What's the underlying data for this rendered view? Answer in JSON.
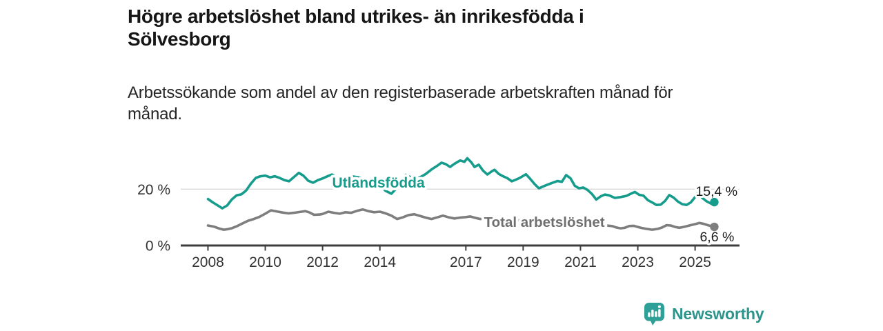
{
  "header": {
    "title_lines": [
      "Högre arbetslöshet bland utrikes- än inrikesfödda i",
      "Sölvesborg"
    ],
    "subtitle_lines": [
      "Arbetssökande som andel av den registerbaserade arbetskraften månad för",
      "månad."
    ]
  },
  "footer": {
    "brand": "Newsworthy",
    "logo_icon": "newsworthy-chart-bubble-icon"
  },
  "colors": {
    "accent_teal": "#169C8C",
    "series_gray": "#7E7E7E",
    "series_gray_label": "#6F6F6F",
    "axis": "#3D3D3D",
    "tick_text": "#333333",
    "grid": "#D9D9D9",
    "value_text": "#1A1A1A",
    "logo_teal": "#2D948B"
  },
  "chart_data": {
    "type": "line",
    "x_unit": "year (monthly resolution)",
    "y_unit": "percent of registered labour force",
    "xlim": [
      2007.05,
      2026.55
    ],
    "ylim": [
      0,
      36
    ],
    "grid_on": true,
    "grid_y": [
      20
    ],
    "yticks": [
      {
        "value": 20,
        "label": "20 %"
      },
      {
        "value": 0,
        "label": "0 %"
      }
    ],
    "xticks": [
      {
        "value": 2008,
        "label": "2008"
      },
      {
        "value": 2010,
        "label": "2010"
      },
      {
        "value": 2012,
        "label": "2012"
      },
      {
        "value": 2014,
        "label": "2014"
      },
      {
        "value": 2017,
        "label": "2017"
      },
      {
        "value": 2019,
        "label": "2019"
      },
      {
        "value": 2021,
        "label": "2021"
      },
      {
        "value": 2023,
        "label": "2023"
      },
      {
        "value": 2025,
        "label": "2025"
      }
    ],
    "legend_position": "inline-labels",
    "series": [
      {
        "name": "Utlandsfödda",
        "color": "#169C8C",
        "label_color": "#169C8C",
        "label_at": {
          "x": 2013.95,
          "y": 20.6
        },
        "end_label": "15,4 %",
        "end_value": 15.4,
        "points": [
          [
            2008.0,
            16.5
          ],
          [
            2008.17,
            15.3
          ],
          [
            2008.33,
            14.3
          ],
          [
            2008.5,
            13.2
          ],
          [
            2008.67,
            14.2
          ],
          [
            2008.83,
            16.3
          ],
          [
            2009.0,
            17.8
          ],
          [
            2009.17,
            18.2
          ],
          [
            2009.33,
            19.5
          ],
          [
            2009.5,
            22.0
          ],
          [
            2009.67,
            24.0
          ],
          [
            2009.83,
            24.6
          ],
          [
            2010.0,
            24.8
          ],
          [
            2010.17,
            24.2
          ],
          [
            2010.33,
            24.6
          ],
          [
            2010.5,
            24.0
          ],
          [
            2010.67,
            23.2
          ],
          [
            2010.83,
            22.8
          ],
          [
            2011.0,
            24.3
          ],
          [
            2011.17,
            25.8
          ],
          [
            2011.33,
            24.8
          ],
          [
            2011.5,
            23.0
          ],
          [
            2011.67,
            22.3
          ],
          [
            2011.83,
            23.2
          ],
          [
            2012.0,
            23.8
          ],
          [
            2012.17,
            24.6
          ],
          [
            2012.33,
            25.2
          ],
          [
            2012.5,
            24.2
          ],
          [
            2012.67,
            23.8
          ],
          [
            2012.83,
            24.2
          ],
          [
            2013.0,
            24.6
          ],
          [
            2013.25,
            24.2
          ],
          [
            2013.5,
            23.6
          ],
          [
            2013.75,
            22.6
          ],
          [
            2014.0,
            21.2
          ],
          [
            2014.2,
            19.4
          ],
          [
            2014.4,
            18.4
          ],
          [
            2014.6,
            20.5
          ],
          [
            2014.75,
            23.0
          ],
          [
            2014.9,
            25.1
          ],
          [
            2015.0,
            24.6
          ],
          [
            2015.2,
            23.8
          ],
          [
            2015.4,
            24.2
          ],
          [
            2015.6,
            25.4
          ],
          [
            2015.8,
            27.0
          ],
          [
            2016.0,
            28.3
          ],
          [
            2016.15,
            29.4
          ],
          [
            2016.3,
            28.9
          ],
          [
            2016.45,
            27.9
          ],
          [
            2016.6,
            29.0
          ],
          [
            2016.8,
            30.2
          ],
          [
            2016.95,
            29.7
          ],
          [
            2017.05,
            31.0
          ],
          [
            2017.2,
            29.4
          ],
          [
            2017.3,
            27.9
          ],
          [
            2017.45,
            28.7
          ],
          [
            2017.6,
            26.6
          ],
          [
            2017.75,
            25.2
          ],
          [
            2017.9,
            26.3
          ],
          [
            2018.0,
            26.9
          ],
          [
            2018.15,
            25.4
          ],
          [
            2018.3,
            24.6
          ],
          [
            2018.45,
            23.9
          ],
          [
            2018.6,
            22.8
          ],
          [
            2018.75,
            23.4
          ],
          [
            2018.9,
            24.1
          ],
          [
            2019.0,
            24.7
          ],
          [
            2019.1,
            25.3
          ],
          [
            2019.25,
            23.6
          ],
          [
            2019.4,
            21.8
          ],
          [
            2019.55,
            20.3
          ],
          [
            2019.7,
            21.0
          ],
          [
            2019.85,
            21.6
          ],
          [
            2020.0,
            22.2
          ],
          [
            2020.2,
            22.9
          ],
          [
            2020.35,
            22.6
          ],
          [
            2020.5,
            25.0
          ],
          [
            2020.65,
            23.9
          ],
          [
            2020.8,
            21.2
          ],
          [
            2020.95,
            20.3
          ],
          [
            2021.1,
            20.6
          ],
          [
            2021.25,
            19.7
          ],
          [
            2021.4,
            18.3
          ],
          [
            2021.55,
            16.3
          ],
          [
            2021.7,
            17.4
          ],
          [
            2021.85,
            18.1
          ],
          [
            2022.0,
            17.8
          ],
          [
            2022.2,
            16.9
          ],
          [
            2022.4,
            17.2
          ],
          [
            2022.6,
            17.6
          ],
          [
            2022.8,
            18.6
          ],
          [
            2022.9,
            19.0
          ],
          [
            2023.05,
            18.0
          ],
          [
            2023.2,
            17.7
          ],
          [
            2023.35,
            16.1
          ],
          [
            2023.5,
            15.3
          ],
          [
            2023.65,
            14.4
          ],
          [
            2023.8,
            14.5
          ],
          [
            2023.95,
            15.8
          ],
          [
            2024.1,
            17.9
          ],
          [
            2024.25,
            17.0
          ],
          [
            2024.4,
            15.6
          ],
          [
            2024.55,
            14.7
          ],
          [
            2024.7,
            14.4
          ],
          [
            2024.85,
            15.3
          ],
          [
            2025.0,
            17.2
          ],
          [
            2025.1,
            18.8
          ],
          [
            2025.25,
            16.9
          ],
          [
            2025.4,
            15.7
          ],
          [
            2025.55,
            14.9
          ],
          [
            2025.67,
            15.4
          ]
        ]
      },
      {
        "name": "Total arbetslöshet",
        "color": "#7E7E7E",
        "label_color": "#6F6F6F",
        "label_at": {
          "x": 2019.74,
          "y": 6.6
        },
        "end_label": "6,6 %",
        "end_value": 6.6,
        "points": [
          [
            2008.0,
            7.1
          ],
          [
            2008.2,
            6.7
          ],
          [
            2008.4,
            6.0
          ],
          [
            2008.55,
            5.6
          ],
          [
            2008.7,
            5.8
          ],
          [
            2008.85,
            6.2
          ],
          [
            2009.0,
            6.8
          ],
          [
            2009.2,
            7.8
          ],
          [
            2009.4,
            8.8
          ],
          [
            2009.6,
            9.4
          ],
          [
            2009.8,
            10.2
          ],
          [
            2010.0,
            11.3
          ],
          [
            2010.2,
            12.5
          ],
          [
            2010.4,
            12.1
          ],
          [
            2010.6,
            11.7
          ],
          [
            2010.8,
            11.4
          ],
          [
            2011.0,
            11.6
          ],
          [
            2011.2,
            11.9
          ],
          [
            2011.4,
            12.2
          ],
          [
            2011.55,
            11.7
          ],
          [
            2011.7,
            10.9
          ],
          [
            2011.9,
            11.0
          ],
          [
            2012.0,
            11.2
          ],
          [
            2012.2,
            12.0
          ],
          [
            2012.4,
            11.6
          ],
          [
            2012.6,
            11.3
          ],
          [
            2012.8,
            11.8
          ],
          [
            2013.0,
            11.6
          ],
          [
            2013.2,
            12.3
          ],
          [
            2013.4,
            12.8
          ],
          [
            2013.6,
            12.2
          ],
          [
            2013.8,
            11.8
          ],
          [
            2014.0,
            12.0
          ],
          [
            2014.2,
            11.4
          ],
          [
            2014.4,
            10.6
          ],
          [
            2014.6,
            9.4
          ],
          [
            2014.8,
            10.0
          ],
          [
            2015.0,
            10.8
          ],
          [
            2015.2,
            11.1
          ],
          [
            2015.4,
            10.5
          ],
          [
            2015.6,
            9.9
          ],
          [
            2015.8,
            9.4
          ],
          [
            2016.0,
            10.0
          ],
          [
            2016.2,
            10.6
          ],
          [
            2016.4,
            10.0
          ],
          [
            2016.6,
            9.6
          ],
          [
            2016.8,
            9.9
          ],
          [
            2017.0,
            10.1
          ],
          [
            2017.15,
            10.3
          ],
          [
            2017.3,
            9.9
          ],
          [
            2017.5,
            9.4
          ],
          [
            2017.7,
            9.6
          ],
          [
            2017.9,
            9.9
          ],
          [
            2018.1,
            9.6
          ],
          [
            2018.3,
            9.3
          ],
          [
            2018.5,
            9.0
          ],
          [
            2018.7,
            8.8
          ],
          [
            2018.9,
            9.0
          ],
          [
            2019.1,
            9.3
          ],
          [
            2019.3,
            9.0
          ],
          [
            2019.5,
            8.7
          ],
          [
            2019.7,
            8.5
          ],
          [
            2019.9,
            8.6
          ],
          [
            2020.1,
            8.8
          ],
          [
            2020.3,
            9.0
          ],
          [
            2020.5,
            9.2
          ],
          [
            2020.7,
            8.8
          ],
          [
            2020.9,
            8.4
          ],
          [
            2021.1,
            8.0
          ],
          [
            2021.3,
            7.7
          ],
          [
            2021.5,
            7.4
          ],
          [
            2021.7,
            7.2
          ],
          [
            2021.9,
            7.1
          ],
          [
            2022.1,
            6.9
          ],
          [
            2022.25,
            6.4
          ],
          [
            2022.4,
            6.1
          ],
          [
            2022.55,
            6.3
          ],
          [
            2022.7,
            6.9
          ],
          [
            2022.85,
            7.0
          ],
          [
            2023.0,
            6.6
          ],
          [
            2023.15,
            6.2
          ],
          [
            2023.3,
            5.9
          ],
          [
            2023.5,
            5.6
          ],
          [
            2023.7,
            5.9
          ],
          [
            2023.85,
            6.4
          ],
          [
            2024.0,
            7.2
          ],
          [
            2024.15,
            7.1
          ],
          [
            2024.3,
            6.6
          ],
          [
            2024.45,
            6.3
          ],
          [
            2024.6,
            6.6
          ],
          [
            2024.8,
            7.1
          ],
          [
            2025.0,
            7.6
          ],
          [
            2025.15,
            8.0
          ],
          [
            2025.3,
            7.7
          ],
          [
            2025.45,
            7.2
          ],
          [
            2025.67,
            6.6
          ]
        ]
      }
    ]
  }
}
